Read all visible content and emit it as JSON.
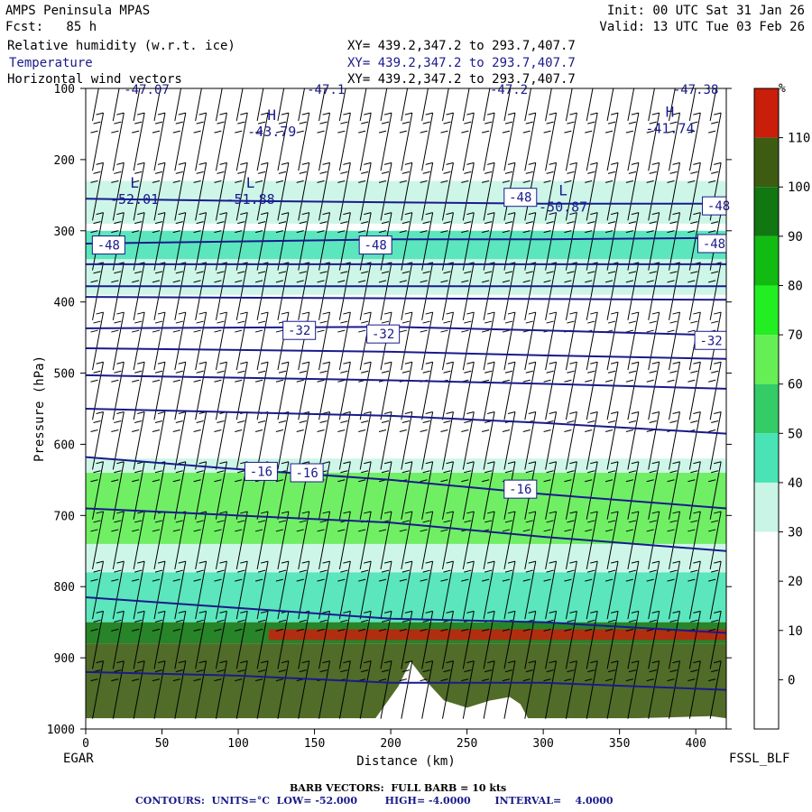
{
  "header": {
    "model": "AMPS Peninsula MPAS",
    "init": "Init: 00 UTC Sat 31 Jan 26",
    "fcst": "Fcst:   85 h",
    "valid": "Valid: 13 UTC Tue 03 Feb 26",
    "fields": [
      {
        "name": "Relative humidity (w.r.t. ice)",
        "xy": "XY= 439.2,347.2 to 293.7,407.7"
      },
      {
        "name": "Temperature",
        "xy": "XY= 439.2,347.2 to 293.7,407.7"
      },
      {
        "name": "Horizontal wind vectors",
        "xy": "XY= 439.2,347.2 to 293.7,407.7"
      }
    ]
  },
  "colors": {
    "contour": "#1a1a8c",
    "rh_scale": [
      "#ffffff",
      "#ffffff",
      "#ffffff",
      "#c8f5e6",
      "#49e3b6",
      "#33cc66",
      "#66ee55",
      "#22ee22",
      "#11bb11",
      "#117711",
      "#3d5c11",
      "#c81e0a"
    ]
  },
  "footer": {
    "left_station": "EGAR",
    "right_station": "FSSL_BLF",
    "barb": "BARB VECTORS:  FULL BARB = 10 kts",
    "contours": "CONTOURS:  UNITS=°C  LOW= -52.000        HIGH= -4.0000       INTERVAL=    4.0000"
  },
  "chart_data": {
    "type": "heatmap",
    "title": "Relative humidity (w.r.t. ice), Temperature, Horizontal wind vectors",
    "xlabel": "Distance (km)",
    "ylabel": "Pressure (hPa)",
    "xlim": [
      0,
      420
    ],
    "ylim": [
      1000,
      100
    ],
    "x_ticks": [
      0,
      50,
      100,
      150,
      200,
      250,
      300,
      350,
      400
    ],
    "y_ticks": [
      100,
      200,
      300,
      400,
      500,
      600,
      700,
      800,
      900,
      1000
    ],
    "colorbar": {
      "unit": "%",
      "levels": [
        0,
        10,
        20,
        30,
        40,
        50,
        60,
        70,
        80,
        90,
        100,
        110
      ]
    },
    "rh_bands": [
      {
        "p_top": 230,
        "p_bot": 290,
        "rh": 35
      },
      {
        "p_top": 300,
        "p_bot": 340,
        "rh": 45
      },
      {
        "p_top": 340,
        "p_bot": 390,
        "rh": 30
      },
      {
        "p_top": 620,
        "p_bot": 780,
        "rh": 35
      },
      {
        "p_top": 640,
        "p_bot": 740,
        "rh": 65
      },
      {
        "p_top": 780,
        "p_bot": 850,
        "rh": 40
      },
      {
        "p_top": 850,
        "p_bot": 880,
        "rh": 95
      },
      {
        "p_top": 880,
        "p_bot": 985,
        "rh": 105
      }
    ],
    "terrain": [
      [
        0,
        985
      ],
      [
        100,
        985
      ],
      [
        190,
        985
      ],
      [
        205,
        940
      ],
      [
        213,
        905
      ],
      [
        222,
        930
      ],
      [
        235,
        960
      ],
      [
        250,
        970
      ],
      [
        265,
        960
      ],
      [
        278,
        955
      ],
      [
        285,
        965
      ],
      [
        290,
        985
      ],
      [
        360,
        985
      ],
      [
        410,
        982
      ],
      [
        420,
        985
      ]
    ],
    "temperature_contours": [
      {
        "value": -48,
        "pressure_at_x": [
          [
            0,
            255
          ],
          [
            100,
            258
          ],
          [
            200,
            260
          ],
          [
            300,
            262
          ],
          [
            420,
            262
          ]
        ]
      },
      {
        "value": -48,
        "pressure_at_x": [
          [
            0,
            318
          ],
          [
            100,
            315
          ],
          [
            200,
            312
          ],
          [
            300,
            312
          ],
          [
            420,
            310
          ]
        ]
      },
      {
        "value": -44,
        "pressure_at_x": [
          [
            0,
            347
          ],
          [
            420,
            347
          ]
        ]
      },
      {
        "value": -40,
        "pressure_at_x": [
          [
            0,
            378
          ],
          [
            420,
            378
          ]
        ]
      },
      {
        "value": -36,
        "pressure_at_x": [
          [
            0,
            393
          ],
          [
            420,
            397
          ]
        ]
      },
      {
        "value": -32,
        "pressure_at_x": [
          [
            0,
            437
          ],
          [
            200,
            435
          ],
          [
            300,
            440
          ],
          [
            420,
            447
          ]
        ]
      },
      {
        "value": -28,
        "pressure_at_x": [
          [
            0,
            465
          ],
          [
            200,
            470
          ],
          [
            300,
            475
          ],
          [
            420,
            480
          ]
        ]
      },
      {
        "value": -24,
        "pressure_at_x": [
          [
            0,
            503
          ],
          [
            200,
            510
          ],
          [
            300,
            515
          ],
          [
            420,
            522
          ]
        ]
      },
      {
        "value": -20,
        "pressure_at_x": [
          [
            0,
            550
          ],
          [
            200,
            560
          ],
          [
            300,
            570
          ],
          [
            420,
            585
          ]
        ]
      },
      {
        "value": -16,
        "pressure_at_x": [
          [
            0,
            618
          ],
          [
            100,
            635
          ],
          [
            200,
            650
          ],
          [
            300,
            670
          ],
          [
            420,
            690
          ]
        ]
      },
      {
        "value": -12,
        "pressure_at_x": [
          [
            0,
            690
          ],
          [
            100,
            700
          ],
          [
            200,
            710
          ],
          [
            300,
            730
          ],
          [
            420,
            750
          ]
        ]
      },
      {
        "value": -8,
        "pressure_at_x": [
          [
            0,
            815
          ],
          [
            100,
            830
          ],
          [
            200,
            845
          ],
          [
            300,
            850
          ],
          [
            420,
            865
          ]
        ]
      },
      {
        "value": -4,
        "pressure_at_x": [
          [
            0,
            920
          ],
          [
            100,
            925
          ],
          [
            200,
            935
          ],
          [
            300,
            935
          ],
          [
            420,
            945
          ]
        ]
      }
    ],
    "contour_labels": [
      {
        "text": "-48",
        "x": 15,
        "p": 320
      },
      {
        "text": "-48",
        "x": 190,
        "p": 320
      },
      {
        "text": "-48",
        "x": 412,
        "p": 318
      },
      {
        "text": "-48",
        "x": 285,
        "p": 253
      },
      {
        "text": "-48",
        "x": 415,
        "p": 265
      },
      {
        "text": "-32",
        "x": 140,
        "p": 440
      },
      {
        "text": "-32",
        "x": 195,
        "p": 445
      },
      {
        "text": "-32",
        "x": 410,
        "p": 454
      },
      {
        "text": "-16",
        "x": 115,
        "p": 638
      },
      {
        "text": "-16",
        "x": 145,
        "p": 640
      },
      {
        "text": "-16",
        "x": 285,
        "p": 663
      }
    ],
    "extrema": [
      {
        "symbol": "H",
        "value": "-43.79",
        "x": 122,
        "p": 167
      },
      {
        "symbol": "H",
        "value": "-41.74",
        "x": 383,
        "p": 163
      },
      {
        "symbol": "L",
        "value": "-52.01",
        "x": 32,
        "p": 262
      },
      {
        "symbol": "L",
        "value": "-51.88",
        "x": 108,
        "p": 262
      },
      {
        "symbol": "L",
        "value": "-50.87",
        "x": 313,
        "p": 273
      }
    ],
    "top_values": [
      "-47.07",
      "-47.1",
      "-47.2",
      "-47.38"
    ]
  }
}
